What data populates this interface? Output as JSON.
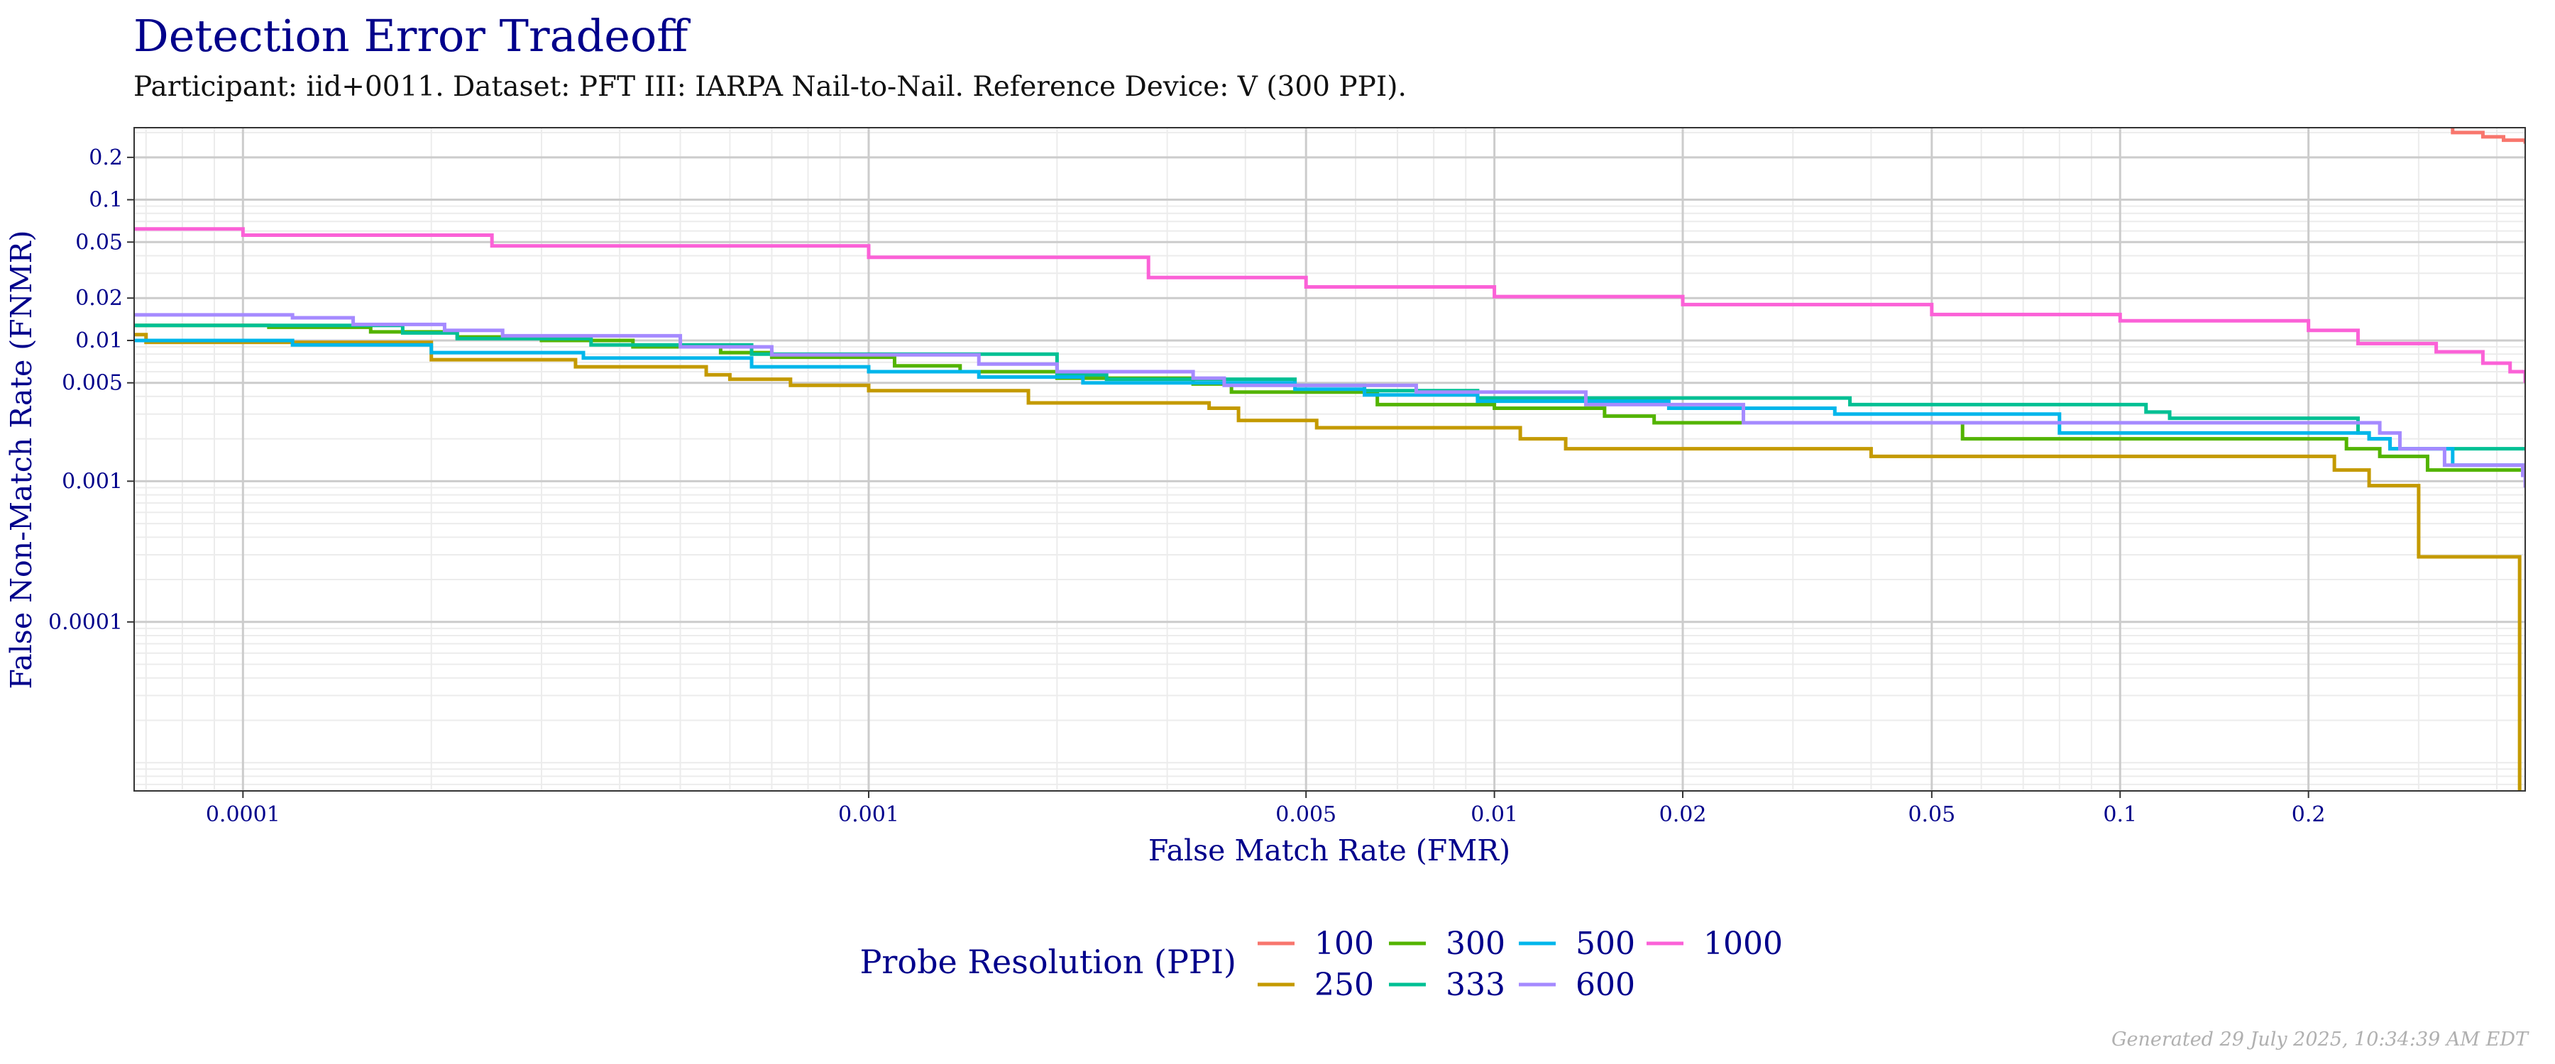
{
  "header": {
    "title": "Detection Error Tradeoff",
    "subtitle": "Participant: iid+0011. Dataset: PFT III: IARPA Nail-to-Nail. Reference Device: V (300 PPI)."
  },
  "footer": "Generated 29 July 2025, 10:34:39 AM EDT",
  "chart_data": {
    "type": "line",
    "step": true,
    "title": "Detection Error Tradeoff",
    "xlabel": "False Match Rate (FMR)",
    "ylabel": "False Non-Match Rate (FNMR)",
    "xscale": "log",
    "yscale": "log",
    "xlim": [
      6.7e-05,
      0.444
    ],
    "ylim": [
      6.3e-06,
      0.325
    ],
    "xticks": [
      {
        "value": 0.0001,
        "label": "0.0001"
      },
      {
        "value": 0.001,
        "label": "0.001"
      },
      {
        "value": 0.005,
        "label": "0.005"
      },
      {
        "value": 0.01,
        "label": "0.01"
      },
      {
        "value": 0.02,
        "label": "0.02"
      },
      {
        "value": 0.05,
        "label": "0.05"
      },
      {
        "value": 0.1,
        "label": "0.1"
      },
      {
        "value": 0.2,
        "label": "0.2"
      }
    ],
    "yticks": [
      {
        "value": 0.0001,
        "label": "0.0001"
      },
      {
        "value": 0.001,
        "label": "0.001"
      },
      {
        "value": 0.005,
        "label": "0.005"
      },
      {
        "value": 0.01,
        "label": "0.01"
      },
      {
        "value": 0.02,
        "label": "0.02"
      },
      {
        "value": 0.05,
        "label": "0.05"
      },
      {
        "value": 0.1,
        "label": "0.1"
      },
      {
        "value": 0.2,
        "label": "0.2"
      }
    ],
    "grid": true,
    "legend": {
      "title": "Probe Resolution (PPI)",
      "position": "bottom"
    },
    "series": [
      {
        "name": "100",
        "color": "#F8766D",
        "points": [
          [
            0.3,
            0.33
          ],
          [
            0.34,
            0.3
          ],
          [
            0.38,
            0.28
          ],
          [
            0.41,
            0.265
          ],
          [
            0.444,
            0.25
          ]
        ]
      },
      {
        "name": "250",
        "color": "#C49A00",
        "points": [
          [
            6.7e-05,
            0.011
          ],
          [
            7e-05,
            0.0097
          ],
          [
            0.0002,
            0.0073
          ],
          [
            0.00034,
            0.0065
          ],
          [
            0.00055,
            0.0057
          ],
          [
            0.0006,
            0.0053
          ],
          [
            0.00075,
            0.0048
          ],
          [
            0.001,
            0.0044
          ],
          [
            0.0018,
            0.0036
          ],
          [
            0.0035,
            0.0033
          ],
          [
            0.0039,
            0.0027
          ],
          [
            0.0052,
            0.0024
          ],
          [
            0.011,
            0.002
          ],
          [
            0.013,
            0.0017
          ],
          [
            0.04,
            0.0015
          ],
          [
            0.22,
            0.0012
          ],
          [
            0.25,
            0.00093
          ],
          [
            0.3,
            0.00029
          ],
          [
            0.435,
            6.3e-06
          ]
        ]
      },
      {
        "name": "300",
        "color": "#53B400",
        "points": [
          [
            6.7e-05,
            0.0128
          ],
          [
            0.00011,
            0.0124
          ],
          [
            0.00016,
            0.0115
          ],
          [
            0.00022,
            0.0106
          ],
          [
            0.0003,
            0.01
          ],
          [
            0.00042,
            0.009
          ],
          [
            0.00058,
            0.0082
          ],
          [
            0.0007,
            0.0076
          ],
          [
            0.0011,
            0.0066
          ],
          [
            0.0014,
            0.006
          ],
          [
            0.002,
            0.0054
          ],
          [
            0.0033,
            0.0049
          ],
          [
            0.0038,
            0.0043
          ],
          [
            0.0065,
            0.0035
          ],
          [
            0.01,
            0.0033
          ],
          [
            0.015,
            0.0029
          ],
          [
            0.018,
            0.0026
          ],
          [
            0.056,
            0.002
          ],
          [
            0.23,
            0.0017
          ],
          [
            0.26,
            0.0015
          ],
          [
            0.31,
            0.0012
          ],
          [
            0.444,
            0.0012
          ]
        ]
      },
      {
        "name": "333",
        "color": "#00C094",
        "points": [
          [
            6.7e-05,
            0.0128
          ],
          [
            0.00018,
            0.0113
          ],
          [
            0.00022,
            0.0103
          ],
          [
            0.00036,
            0.0093
          ],
          [
            0.00065,
            0.008
          ],
          [
            0.002,
            0.0057
          ],
          [
            0.0024,
            0.0053
          ],
          [
            0.0048,
            0.0048
          ],
          [
            0.0062,
            0.0044
          ],
          [
            0.0094,
            0.0039
          ],
          [
            0.037,
            0.0035
          ],
          [
            0.11,
            0.0031
          ],
          [
            0.12,
            0.0028
          ],
          [
            0.24,
            0.0022
          ],
          [
            0.25,
            0.002
          ],
          [
            0.27,
            0.0017
          ],
          [
            0.444,
            0.0017
          ]
        ]
      },
      {
        "name": "500",
        "color": "#00B6EB",
        "points": [
          [
            6.7e-05,
            0.01
          ],
          [
            0.00012,
            0.0093
          ],
          [
            0.0002,
            0.0082
          ],
          [
            0.00035,
            0.0075
          ],
          [
            0.00065,
            0.0065
          ],
          [
            0.001,
            0.006
          ],
          [
            0.0015,
            0.0055
          ],
          [
            0.0022,
            0.005
          ],
          [
            0.0048,
            0.0045
          ],
          [
            0.0062,
            0.0041
          ],
          [
            0.0094,
            0.0037
          ],
          [
            0.019,
            0.0033
          ],
          [
            0.035,
            0.003
          ],
          [
            0.08,
            0.0022
          ],
          [
            0.25,
            0.002
          ],
          [
            0.27,
            0.0017
          ],
          [
            0.34,
            0.0013
          ],
          [
            0.444,
            0.0012
          ]
        ]
      },
      {
        "name": "600",
        "color": "#A58AFF",
        "points": [
          [
            6.7e-05,
            0.0152
          ],
          [
            0.00012,
            0.0145
          ],
          [
            0.00015,
            0.013
          ],
          [
            0.00021,
            0.0118
          ],
          [
            0.00026,
            0.0108
          ],
          [
            0.0005,
            0.009
          ],
          [
            0.0007,
            0.0079
          ],
          [
            0.0015,
            0.0068
          ],
          [
            0.002,
            0.006
          ],
          [
            0.0033,
            0.0054
          ],
          [
            0.0037,
            0.0048
          ],
          [
            0.0075,
            0.0043
          ],
          [
            0.014,
            0.0035
          ],
          [
            0.025,
            0.0026
          ],
          [
            0.26,
            0.0022
          ],
          [
            0.28,
            0.0017
          ],
          [
            0.33,
            0.0013
          ],
          [
            0.44,
            0.0011
          ],
          [
            0.444,
            0.0009
          ]
        ]
      },
      {
        "name": "1000",
        "color": "#FB61D7",
        "points": [
          [
            6.7e-05,
            0.062
          ],
          [
            0.0001,
            0.056
          ],
          [
            0.00025,
            0.047
          ],
          [
            0.001,
            0.039
          ],
          [
            0.0028,
            0.028
          ],
          [
            0.005,
            0.024
          ],
          [
            0.01,
            0.0205
          ],
          [
            0.02,
            0.018
          ],
          [
            0.05,
            0.0153
          ],
          [
            0.1,
            0.0138
          ],
          [
            0.2,
            0.0118
          ],
          [
            0.24,
            0.0095
          ],
          [
            0.32,
            0.0083
          ],
          [
            0.38,
            0.0069
          ],
          [
            0.42,
            0.006
          ],
          [
            0.444,
            0.005
          ]
        ]
      }
    ]
  }
}
